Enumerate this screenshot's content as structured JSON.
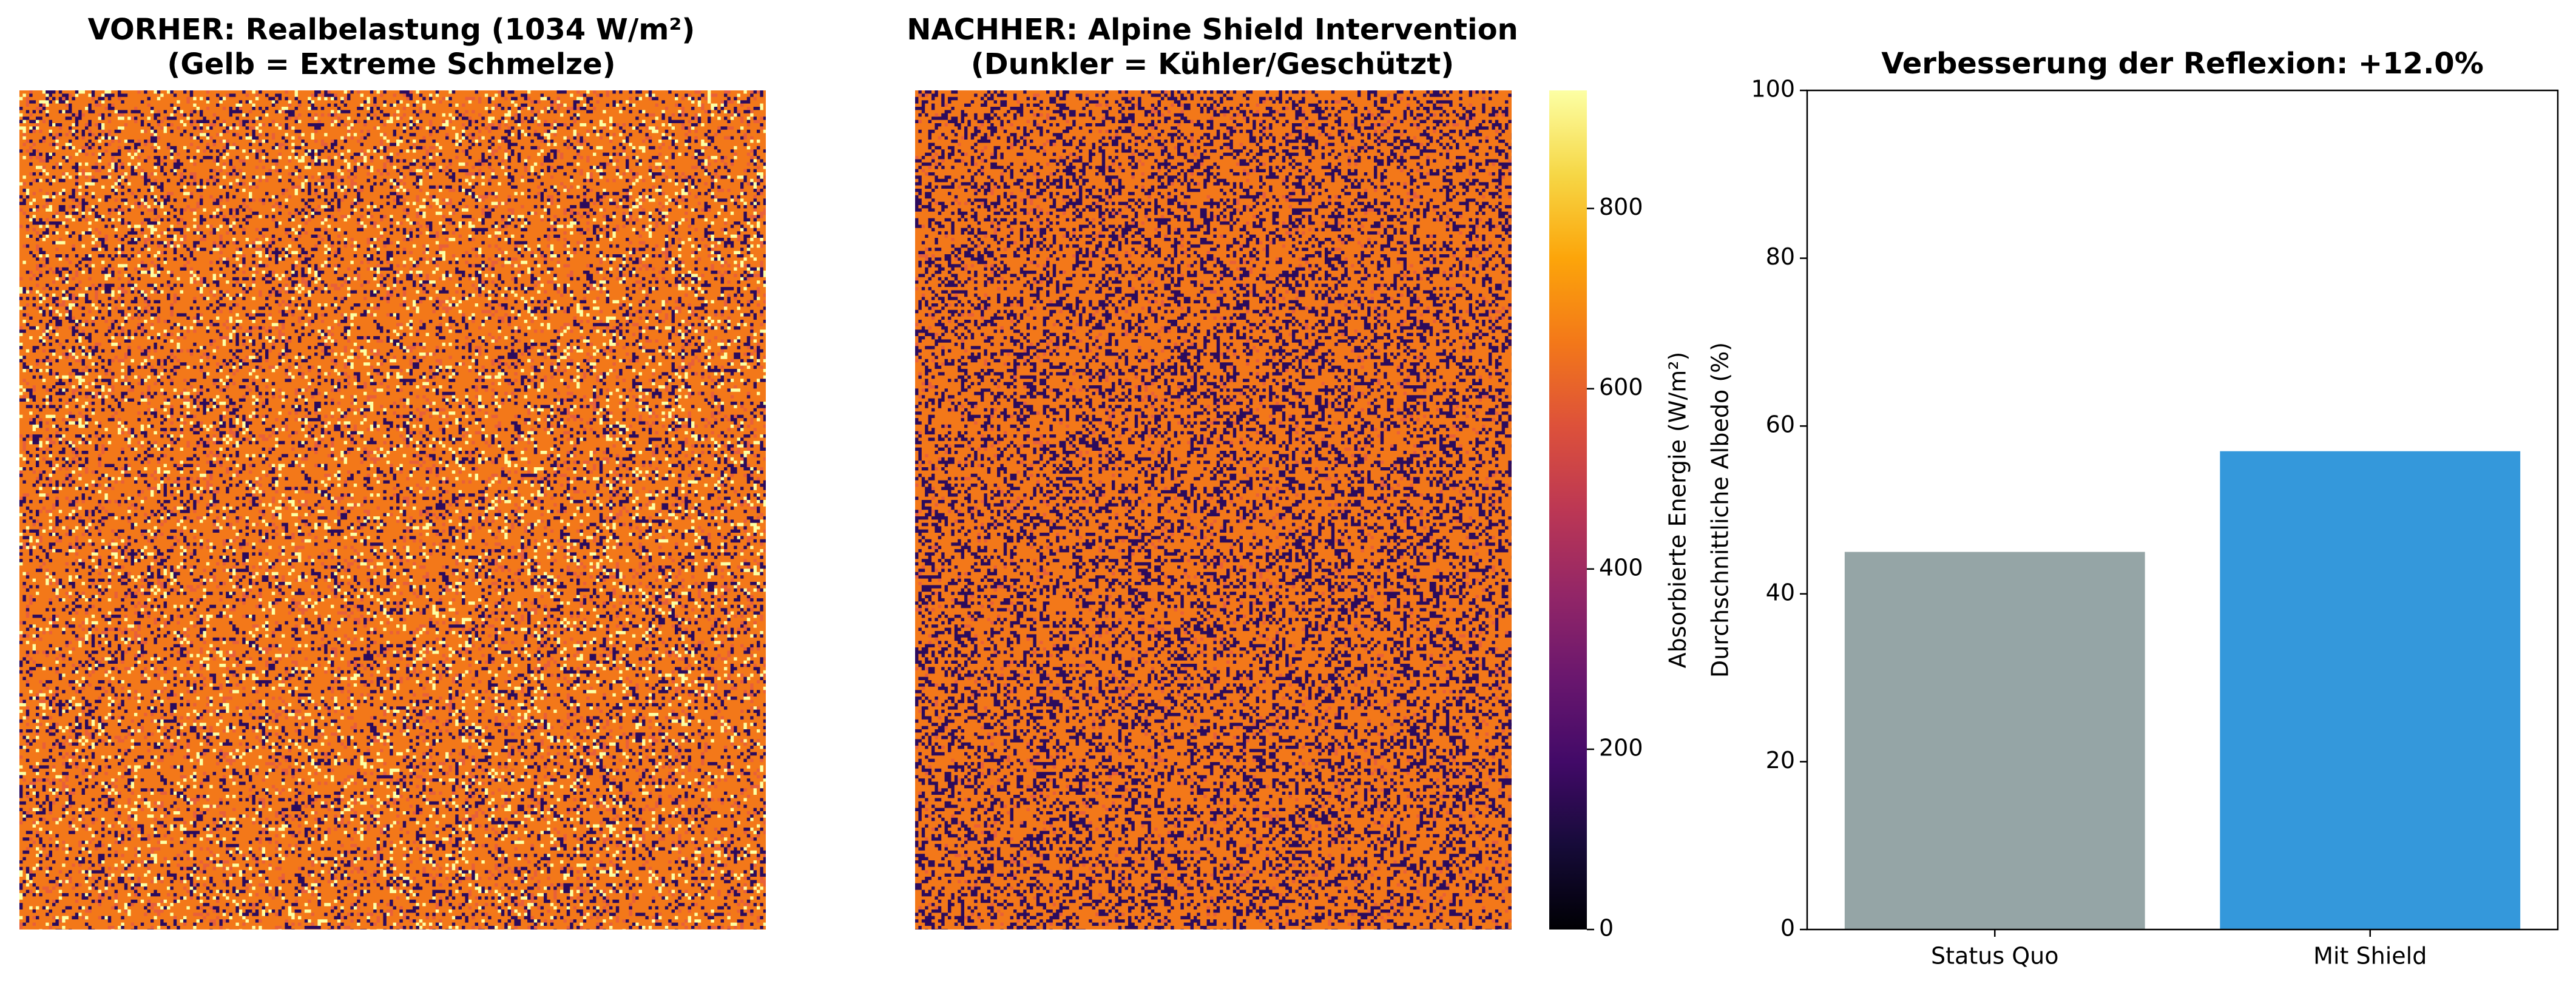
{
  "chart_data": [
    {
      "type": "heatmap",
      "title": "VORHER: Realbelastung (1034 W/m²)\n(Gelb = Extreme Schmelze)"
    },
    {
      "type": "heatmap",
      "title": "NACHHER: Alpine Shield Intervention\n(Dunkler = Kühler/Geschützt)",
      "colorbar": {
        "label": "Absorbierte Energie (W/m²)",
        "clim": [
          0,
          931
        ],
        "ticks": [
          0,
          200,
          400,
          600,
          800
        ],
        "colormap": "inferno"
      }
    },
    {
      "type": "bar",
      "title": "Verbesserung der Reflexion: +12.0%",
      "ylabel": "Durchschnittliche Albedo (%)",
      "categories": [
        "Status Quo",
        "Mit Shield"
      ],
      "values": [
        45,
        57
      ],
      "colors": [
        "#95a5a6",
        "#3498db"
      ],
      "ylim": [
        0,
        100
      ],
      "yticks": [
        0,
        20,
        40,
        60,
        80,
        100
      ]
    }
  ]
}
